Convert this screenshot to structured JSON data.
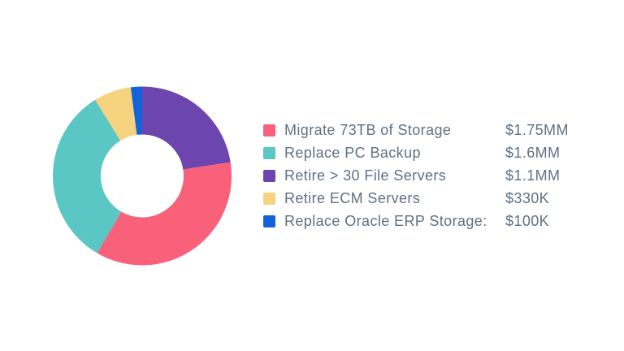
{
  "canvas": {
    "background": "#FFFFFF",
    "text_color": "#5E7183"
  },
  "chart_data": {
    "type": "pie",
    "variant": "donut",
    "title": "",
    "legend_position": "right",
    "direction": "clockwise",
    "start_angle_deg": 0,
    "inner_radius_ratio": 0.46,
    "value_unit": "USD millions",
    "items": [
      {
        "slug": "migrate-73tb-of-storage",
        "label": "Migrate 73TB of Storage",
        "value": 1.75,
        "value_label": "$1.75MM",
        "color": "#F9607A"
      },
      {
        "slug": "replace-pc-backup",
        "label": "Replace PC Backup",
        "value": 1.6,
        "value_label": "$1.6MM",
        "color": "#5AC7C4"
      },
      {
        "slug": "retire-30-file-servers",
        "label": "Retire > 30 File Servers",
        "value": 1.1,
        "value_label": "$1.1MM",
        "color": "#6C45AE"
      },
      {
        "slug": "retire-ecm-servers",
        "label": "Retire ECM Servers",
        "value": 0.33,
        "value_label": "$330K",
        "color": "#F6D37E"
      },
      {
        "slug": "replace-oracle-erp-storage",
        "label": "Replace Oracle ERP Storage:",
        "value": 0.1,
        "value_label": "$100K",
        "color": "#1263DA"
      }
    ],
    "draw_order_from_top_clockwise": [
      2,
      0,
      1,
      3,
      4
    ]
  }
}
